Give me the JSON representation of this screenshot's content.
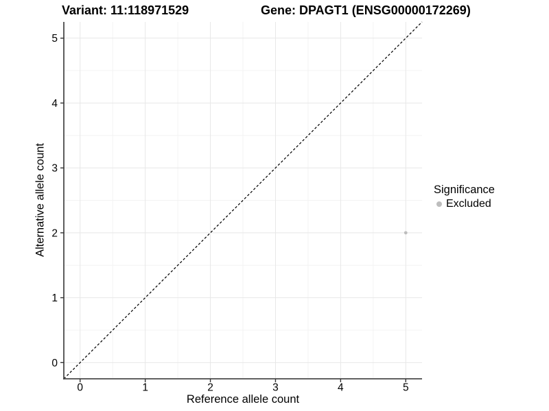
{
  "titles": {
    "variant": "Variant: 11:118971529",
    "gene": "Gene: DPAGT1 (ENSG00000172269)"
  },
  "legend": {
    "title": "Significance",
    "items": [
      {
        "label": "Excluded",
        "color": "#bdbdbd"
      }
    ]
  },
  "colors": {
    "background": "#ffffff",
    "grid_major": "#e7e7e7",
    "grid_minor": "#f3f3f3",
    "axis_line": "#4a4a4a",
    "tick_mark": "#333333",
    "tick_text": "#000000",
    "identity_line": "#000000",
    "point": "#bdbdbd"
  },
  "chart_data": {
    "type": "scatter",
    "title": "Variant: 11:118971529  /  Gene: DPAGT1 (ENSG00000172269)",
    "xlabel": "Reference allele count",
    "ylabel": "Alternative allele count",
    "xlim": [
      -0.25,
      5.25
    ],
    "ylim": [
      -0.25,
      5.25
    ],
    "x_ticks": [
      0,
      1,
      2,
      3,
      4,
      5
    ],
    "y_ticks": [
      0,
      1,
      2,
      3,
      4,
      5
    ],
    "grid": "major+minor",
    "legend_position": "right",
    "series": [
      {
        "name": "Excluded",
        "color": "#bdbdbd",
        "point_radius": 2.4,
        "points": [
          {
            "x": 5,
            "y": 2
          }
        ]
      }
    ],
    "reference_line": {
      "kind": "identity",
      "linetype": "dashed",
      "color": "#000000",
      "from": [
        -0.25,
        -0.25
      ],
      "to": [
        5.25,
        5.25
      ]
    }
  }
}
